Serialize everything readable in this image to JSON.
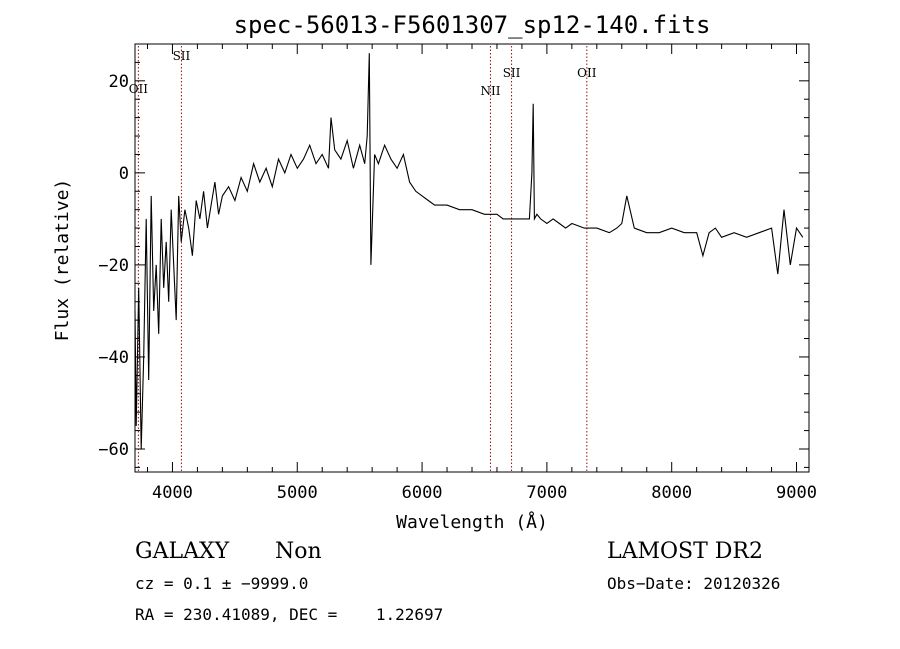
{
  "chart_data": {
    "type": "line",
    "title": "spec-56013-F5601307_sp12-140.fits",
    "xlabel": "Wavelength (Å)",
    "ylabel": "Flux (relative)",
    "xlim": [
      3700,
      9100
    ],
    "ylim": [
      -65,
      28
    ],
    "x_ticks": [
      4000,
      5000,
      6000,
      7000,
      8000,
      9000
    ],
    "x_tick_labels": [
      "4000",
      "5000",
      "6000",
      "7000",
      "8000",
      "9000"
    ],
    "y_ticks": [
      20,
      0,
      -20,
      -40,
      -60
    ],
    "y_tick_labels": [
      "20",
      "0",
      "−20",
      "−40",
      "−60"
    ],
    "grid": false,
    "series": [
      {
        "x": [
          3700,
          3710,
          3730,
          3750,
          3770,
          3790,
          3810,
          3830,
          3850,
          3870,
          3890,
          3910,
          3930,
          3950,
          3970,
          3990,
          4010,
          4030,
          4050,
          4070,
          4100,
          4130,
          4160,
          4190,
          4220,
          4250,
          4280,
          4310,
          4340,
          4370,
          4400,
          4450,
          4500,
          4550,
          4600,
          4650,
          4700,
          4750,
          4800,
          4850,
          4900,
          4950,
          5000,
          5050,
          5100,
          5150,
          5200,
          5250,
          5270,
          5300,
          5350,
          5400,
          5450,
          5500,
          5540,
          5560,
          5577,
          5590,
          5620,
          5650,
          5700,
          5750,
          5800,
          5850,
          5900,
          5950,
          6000,
          6050,
          6100,
          6200,
          6300,
          6400,
          6500,
          6550,
          6600,
          6650,
          6700,
          6750,
          6800,
          6860,
          6880,
          6890,
          6900,
          6920,
          6950,
          7000,
          7050,
          7100,
          7150,
          7200,
          7300,
          7400,
          7500,
          7560,
          7600,
          7640,
          7700,
          7800,
          7900,
          8000,
          8100,
          8200,
          8250,
          8300,
          8350,
          8400,
          8500,
          8600,
          8700,
          8800,
          8850,
          8900,
          8950,
          9000,
          9050
        ],
        "values": [
          -30,
          -55,
          -25,
          -60,
          -40,
          -10,
          -45,
          -5,
          -30,
          -20,
          -35,
          -10,
          -25,
          -15,
          -28,
          -8,
          -20,
          -32,
          -5,
          -15,
          -8,
          -12,
          -18,
          -6,
          -10,
          -4,
          -12,
          -7,
          -2,
          -9,
          -5,
          -3,
          -6,
          -1,
          -4,
          2,
          -2,
          1,
          -3,
          3,
          0,
          4,
          1,
          3,
          6,
          2,
          4,
          1,
          12,
          5,
          3,
          7,
          1,
          6,
          2,
          8,
          26,
          -20,
          4,
          2,
          6,
          3,
          1,
          4,
          -2,
          -4,
          -5,
          -6,
          -7,
          -7,
          -8,
          -8,
          -9,
          -9,
          -9,
          -10,
          -10,
          -10,
          -10,
          -10,
          0,
          15,
          -10,
          -9,
          -10,
          -11,
          -10,
          -11,
          -12,
          -11,
          -12,
          -12,
          -13,
          -12,
          -11,
          -5,
          -12,
          -13,
          -13,
          -12,
          -13,
          -13,
          -18,
          -13,
          -12,
          -14,
          -13,
          -14,
          -13,
          -12,
          -22,
          -8,
          -20,
          -12,
          -14
        ]
      }
    ],
    "line_markers": [
      {
        "wavelength": 3727,
        "label": "OII"
      },
      {
        "wavelength": 4072,
        "label": "SII"
      },
      {
        "wavelength": 6548,
        "label": "NII"
      },
      {
        "wavelength": 6717,
        "label": "SII"
      },
      {
        "wavelength": 7320,
        "label": "OII"
      }
    ]
  },
  "info": {
    "object_class": "GALAXY",
    "subclass": "Non",
    "survey": "LAMOST DR2",
    "cz_line": "cz = 0.1 ± −9999.0",
    "obs_date": "Obs−Date: 20120326",
    "coords": "RA = 230.41089, DEC =    1.22697"
  },
  "colors": {
    "spectrum": "#000000",
    "marker_lines": "#a01010",
    "axes": "#000000"
  }
}
